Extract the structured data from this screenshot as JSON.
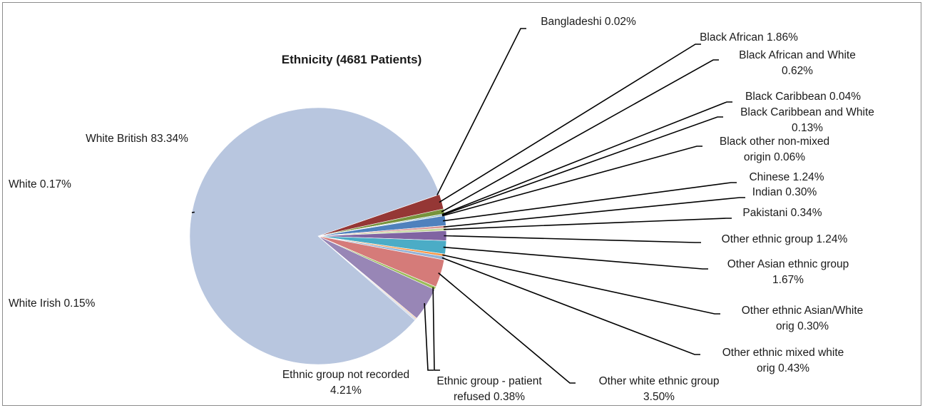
{
  "chart_data": {
    "type": "pie",
    "title": "Ethnicity (4681 Patients)",
    "slices": [
      {
        "name": "Bangladeshi",
        "value": 0.02,
        "label": [
          "Bangladeshi 0.02%"
        ],
        "color": "#c0504d"
      },
      {
        "name": "Black African",
        "value": 1.86,
        "label": [
          "Black African 1.86%"
        ],
        "color": "#953735"
      },
      {
        "name": "Black African and White",
        "value": 0.62,
        "label": [
          "Black African and White",
          "0.62%"
        ],
        "color": "#77933c"
      },
      {
        "name": "Black Caribbean",
        "value": 0.04,
        "label": [
          "Black Caribbean 0.04%"
        ],
        "color": "#8064a2"
      },
      {
        "name": "Black Caribbean and White",
        "value": 0.13,
        "label": [
          "Black Caribbean and White",
          "0.13%"
        ],
        "color": "#31859c"
      },
      {
        "name": "Black other non-mixed origin",
        "value": 0.06,
        "label": [
          "Black other non-mixed",
          "origin 0.06%"
        ],
        "color": "#e46c0a"
      },
      {
        "name": "Chinese",
        "value": 1.24,
        "label": [
          "Chinese 1.24%"
        ],
        "color": "#4f81bd"
      },
      {
        "name": "Indian",
        "value": 0.3,
        "label": [
          "Indian 0.30%"
        ],
        "color": "#d99694"
      },
      {
        "name": "Pakistani",
        "value": 0.34,
        "label": [
          "Pakistani 0.34%"
        ],
        "color": "#c3d69b"
      },
      {
        "name": "Other ethnic group",
        "value": 1.24,
        "label": [
          "Other ethnic group 1.24%"
        ],
        "color": "#8064a2"
      },
      {
        "name": "Other Asian ethnic group",
        "value": 1.67,
        "label": [
          "Other Asian ethnic group",
          "1.67%"
        ],
        "color": "#4bacc6"
      },
      {
        "name": "Other ethnic Asian/White orig",
        "value": 0.3,
        "label": [
          "Other ethnic Asian/White",
          "orig 0.30%"
        ],
        "color": "#f79646"
      },
      {
        "name": "Other ethnic mixed white orig",
        "value": 0.43,
        "label": [
          "Other ethnic mixed white",
          "orig 0.43%"
        ],
        "color": "#95b3d7"
      },
      {
        "name": "Other white ethnic group",
        "value": 3.5,
        "label": [
          "Other white ethnic group",
          "3.50%"
        ],
        "color": "#d57b79"
      },
      {
        "name": "Ethnic group - patient refused",
        "value": 0.38,
        "label": [
          "Ethnic group - patient",
          "refused 0.38%"
        ],
        "color": "#9bbb59"
      },
      {
        "name": "Ethnic group not recorded",
        "value": 4.21,
        "label": [
          "Ethnic group not recorded",
          "4.21%"
        ],
        "color": "#9886b6"
      },
      {
        "name": "White Irish",
        "value": 0.15,
        "label": [
          "White Irish 0.15%"
        ],
        "color": "#f2c4a0"
      },
      {
        "name": "White",
        "value": 0.17,
        "label": [
          "White 0.17%"
        ],
        "color": "#c7d3e8"
      },
      {
        "name": "White British",
        "value": 83.34,
        "label": [
          "White British 83.34%"
        ],
        "color": "#b8c6df"
      }
    ]
  }
}
